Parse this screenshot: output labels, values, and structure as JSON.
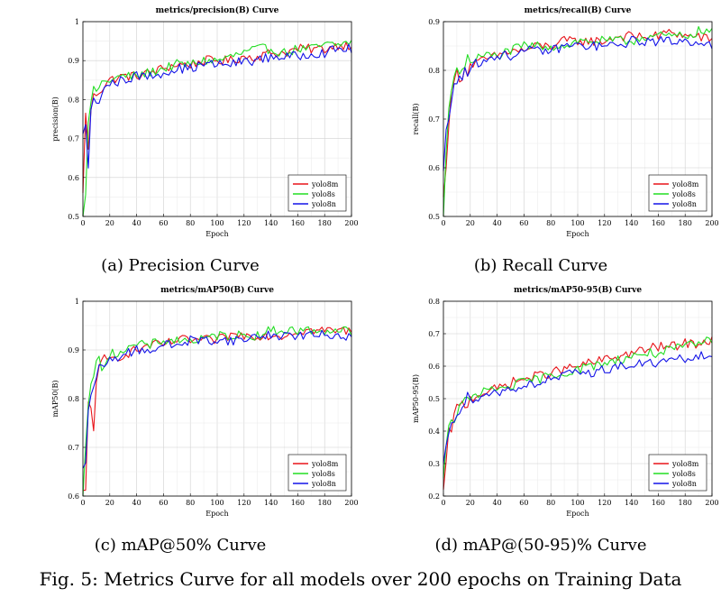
{
  "figure_caption": "Fig. 5: Metrics Curve for all models over 200 epochs on Training Data",
  "series_colors": {
    "yolo8m": "#e8141a",
    "yolo8s": "#22dd22",
    "yolo8n": "#1414e8"
  },
  "chart_data": [
    {
      "type": "line",
      "title": "metrics/precision(B) Curve",
      "caption": "(a) Precision Curve",
      "xlabel": "Epoch",
      "ylabel": "precision(B)",
      "xlim": [
        0,
        200
      ],
      "ylim": [
        0.5,
        1
      ],
      "xticks": [
        0,
        20,
        40,
        60,
        80,
        100,
        120,
        140,
        160,
        180,
        200
      ],
      "yticks": [
        0.5,
        0.6,
        0.7,
        0.8,
        0.9,
        1
      ],
      "ytick_labels": [
        "0.5",
        "0.6",
        "0.7",
        "0.8",
        "0.9",
        "1"
      ],
      "grid": true,
      "legend": "bottom-right",
      "x": [
        0,
        2,
        4,
        6,
        8,
        10,
        15,
        20,
        30,
        40,
        50,
        60,
        70,
        80,
        90,
        100,
        110,
        120,
        130,
        140,
        150,
        160,
        170,
        180,
        190,
        200
      ],
      "series": [
        {
          "name": "yolo8m",
          "values": [
            0.55,
            0.78,
            0.66,
            0.78,
            0.8,
            0.82,
            0.84,
            0.85,
            0.86,
            0.86,
            0.87,
            0.88,
            0.89,
            0.89,
            0.9,
            0.9,
            0.9,
            0.91,
            0.91,
            0.92,
            0.92,
            0.93,
            0.93,
            0.93,
            0.94,
            0.94
          ]
        },
        {
          "name": "yolo8s",
          "values": [
            0.5,
            0.56,
            0.72,
            0.8,
            0.81,
            0.83,
            0.84,
            0.85,
            0.86,
            0.86,
            0.87,
            0.88,
            0.89,
            0.89,
            0.9,
            0.9,
            0.91,
            0.92,
            0.93,
            0.93,
            0.92,
            0.93,
            0.93,
            0.94,
            0.94,
            0.95
          ]
        },
        {
          "name": "yolo8n",
          "values": [
            0.7,
            0.75,
            0.62,
            0.76,
            0.79,
            0.8,
            0.82,
            0.84,
            0.85,
            0.86,
            0.86,
            0.87,
            0.88,
            0.88,
            0.89,
            0.89,
            0.89,
            0.9,
            0.9,
            0.91,
            0.91,
            0.91,
            0.92,
            0.92,
            0.93,
            0.93
          ]
        }
      ]
    },
    {
      "type": "line",
      "title": "metrics/recall(B) Curve",
      "caption": "(b) Recall Curve",
      "xlabel": "Epoch",
      "ylabel": "recall(B)",
      "xlim": [
        0,
        200
      ],
      "ylim": [
        0.5,
        0.9
      ],
      "xticks": [
        0,
        20,
        40,
        60,
        80,
        100,
        120,
        140,
        160,
        180,
        200
      ],
      "yticks": [
        0.5,
        0.6,
        0.7,
        0.8,
        0.9
      ],
      "ytick_labels": [
        "0.5",
        "0.6",
        "0.7",
        "0.8",
        "0.9"
      ],
      "grid": true,
      "legend": "bottom-right",
      "x": [
        0,
        2,
        4,
        6,
        8,
        10,
        15,
        20,
        30,
        40,
        50,
        60,
        70,
        80,
        90,
        100,
        110,
        120,
        130,
        140,
        150,
        160,
        170,
        180,
        190,
        200
      ],
      "series": [
        {
          "name": "yolo8m",
          "values": [
            0.53,
            0.62,
            0.7,
            0.74,
            0.78,
            0.79,
            0.8,
            0.81,
            0.82,
            0.83,
            0.84,
            0.84,
            0.85,
            0.85,
            0.86,
            0.86,
            0.86,
            0.86,
            0.87,
            0.87,
            0.87,
            0.87,
            0.88,
            0.87,
            0.87,
            0.86
          ]
        },
        {
          "name": "yolo8s",
          "values": [
            0.5,
            0.64,
            0.72,
            0.76,
            0.78,
            0.8,
            0.81,
            0.82,
            0.83,
            0.83,
            0.84,
            0.85,
            0.85,
            0.85,
            0.85,
            0.86,
            0.86,
            0.86,
            0.86,
            0.86,
            0.87,
            0.87,
            0.87,
            0.87,
            0.88,
            0.88
          ]
        },
        {
          "name": "yolo8n",
          "values": [
            0.6,
            0.66,
            0.69,
            0.73,
            0.77,
            0.78,
            0.8,
            0.81,
            0.82,
            0.83,
            0.83,
            0.84,
            0.84,
            0.84,
            0.85,
            0.85,
            0.85,
            0.85,
            0.85,
            0.86,
            0.86,
            0.86,
            0.86,
            0.86,
            0.86,
            0.85
          ]
        }
      ]
    },
    {
      "type": "line",
      "title": "metrics/mAP50(B) Curve",
      "caption": "(c) mAP@50% Curve",
      "xlabel": "Epoch",
      "ylabel": "mAP50(B)",
      "xlim": [
        0,
        200
      ],
      "ylim": [
        0.6,
        1
      ],
      "xticks": [
        0,
        20,
        40,
        60,
        80,
        100,
        120,
        140,
        160,
        180,
        200
      ],
      "yticks": [
        0.6,
        0.7,
        0.8,
        0.9,
        1
      ],
      "ytick_labels": [
        "0.6",
        "0.7",
        "0.8",
        "0.9",
        "1"
      ],
      "grid": true,
      "legend": "bottom-right",
      "x": [
        0,
        2,
        4,
        6,
        8,
        10,
        15,
        20,
        30,
        40,
        50,
        60,
        70,
        80,
        90,
        100,
        110,
        120,
        130,
        140,
        150,
        160,
        170,
        180,
        190,
        200
      ],
      "series": [
        {
          "name": "yolo8m",
          "values": [
            0.6,
            0.6,
            0.79,
            0.78,
            0.75,
            0.84,
            0.87,
            0.88,
            0.89,
            0.9,
            0.91,
            0.91,
            0.92,
            0.92,
            0.92,
            0.92,
            0.93,
            0.93,
            0.93,
            0.93,
            0.93,
            0.94,
            0.94,
            0.94,
            0.94,
            0.94
          ]
        },
        {
          "name": "yolo8s",
          "values": [
            0.6,
            0.72,
            0.8,
            0.83,
            0.85,
            0.86,
            0.88,
            0.89,
            0.9,
            0.91,
            0.91,
            0.92,
            0.92,
            0.92,
            0.92,
            0.93,
            0.93,
            0.93,
            0.93,
            0.94,
            0.94,
            0.94,
            0.94,
            0.94,
            0.94,
            0.94
          ]
        },
        {
          "name": "yolo8n",
          "values": [
            0.64,
            0.66,
            0.76,
            0.81,
            0.83,
            0.85,
            0.86,
            0.88,
            0.89,
            0.9,
            0.9,
            0.91,
            0.91,
            0.92,
            0.92,
            0.92,
            0.92,
            0.92,
            0.93,
            0.93,
            0.93,
            0.93,
            0.93,
            0.93,
            0.93,
            0.93
          ]
        }
      ]
    },
    {
      "type": "line",
      "title": "metrics/mAP50-95(B) Curve",
      "caption": "(d) mAP@(50-95)% Curve",
      "xlabel": "Epoch",
      "ylabel": "mAP50-95(B)",
      "xlim": [
        0,
        200
      ],
      "ylim": [
        0.2,
        0.8
      ],
      "xticks": [
        0,
        20,
        40,
        60,
        80,
        100,
        120,
        140,
        160,
        180,
        200
      ],
      "yticks": [
        0.2,
        0.3,
        0.4,
        0.5,
        0.6,
        0.7,
        0.8
      ],
      "ytick_labels": [
        "0.2",
        "0.3",
        "0.4",
        "0.5",
        "0.6",
        "0.7",
        "0.8"
      ],
      "grid": true,
      "legend": "bottom-right",
      "x": [
        0,
        2,
        4,
        6,
        8,
        10,
        15,
        20,
        30,
        40,
        50,
        60,
        70,
        80,
        90,
        100,
        110,
        120,
        130,
        140,
        150,
        160,
        170,
        180,
        190,
        200
      ],
      "series": [
        {
          "name": "yolo8m",
          "values": [
            0.2,
            0.3,
            0.38,
            0.42,
            0.44,
            0.46,
            0.48,
            0.5,
            0.52,
            0.53,
            0.55,
            0.56,
            0.57,
            0.58,
            0.59,
            0.6,
            0.61,
            0.62,
            0.63,
            0.64,
            0.65,
            0.66,
            0.66,
            0.67,
            0.67,
            0.68
          ]
        },
        {
          "name": "yolo8s",
          "values": [
            0.25,
            0.33,
            0.4,
            0.43,
            0.45,
            0.46,
            0.48,
            0.5,
            0.52,
            0.53,
            0.54,
            0.55,
            0.56,
            0.57,
            0.58,
            0.59,
            0.6,
            0.61,
            0.62,
            0.63,
            0.64,
            0.64,
            0.65,
            0.66,
            0.67,
            0.68
          ]
        },
        {
          "name": "yolo8n",
          "values": [
            0.3,
            0.36,
            0.42,
            0.44,
            0.45,
            0.46,
            0.48,
            0.5,
            0.51,
            0.52,
            0.53,
            0.54,
            0.55,
            0.56,
            0.57,
            0.58,
            0.58,
            0.59,
            0.6,
            0.6,
            0.61,
            0.61,
            0.62,
            0.62,
            0.63,
            0.63
          ]
        }
      ]
    }
  ]
}
